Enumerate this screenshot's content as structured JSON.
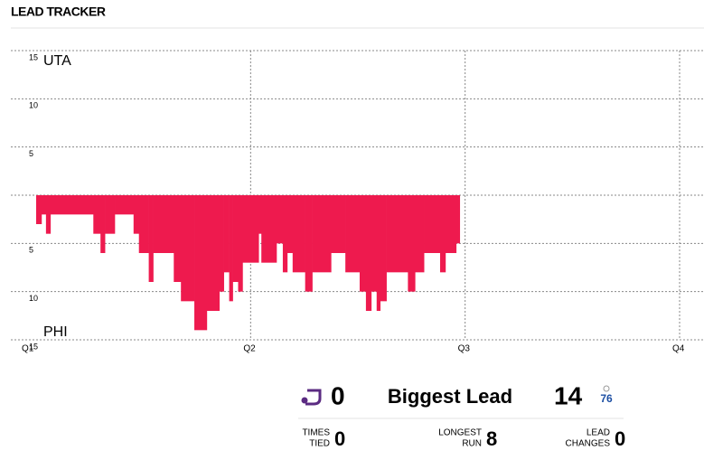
{
  "header": {
    "title": "LEAD TRACKER"
  },
  "chart_data": {
    "type": "step-area",
    "x": [
      0,
      0.3,
      0.55,
      0.8,
      3.2,
      3.6,
      3.85,
      4.4,
      5.45,
      5.75,
      6.3,
      6.55,
      7.7,
      8.1,
      8.85,
      9.55,
      10.25,
      10.5,
      10.8,
      11.0,
      11.3,
      11.55,
      12.45,
      12.6,
      13.45,
      13.8,
      14.05,
      14.35,
      15.05,
      15.45,
      16.5,
      17.3,
      18.1,
      18.45,
      18.75,
      19.05,
      19.25,
      19.6,
      20.8,
      21.2,
      21.7,
      22.6,
      22.9,
      23.5,
      23.7
    ],
    "values": [
      -3,
      -2,
      -4,
      -2,
      -4,
      -6,
      -4,
      -2,
      -4,
      -6,
      -9,
      -6,
      -9,
      -11,
      -14,
      -12,
      -10,
      -8,
      -11,
      -9,
      -10,
      -7,
      -4,
      -7,
      -5,
      -8,
      -6,
      -8,
      -10,
      -8,
      -6,
      -8,
      -10,
      -12,
      -10,
      -12,
      -11,
      -8,
      -10,
      -8,
      -6,
      -8,
      -6,
      -5,
      -5
    ],
    "color": "#ee1a4e",
    "xlim": [
      0,
      36
    ],
    "xticks": [
      {
        "value": 0,
        "label": "Q1"
      },
      {
        "value": 12,
        "label": "Q2"
      },
      {
        "value": 24,
        "label": "Q3"
      },
      {
        "value": 36,
        "label": "Q4"
      }
    ],
    "ylim": [
      -15,
      15
    ],
    "yticks": [
      {
        "value": -15,
        "label": "15"
      },
      {
        "value": -10,
        "label": "10"
      },
      {
        "value": -5,
        "label": "5"
      },
      {
        "value": 0,
        "label": null
      },
      5,
      10,
      15
    ],
    "top_team": "UTA",
    "bottom_team": "PHI",
    "grid": true
  },
  "stats": {
    "left_value": "0",
    "center_label": "Biggest Lead",
    "right_value": "14",
    "items": [
      {
        "label": [
          "TIMES",
          "TIED"
        ],
        "value": "0"
      },
      {
        "label": [
          "LONGEST",
          "RUN"
        ],
        "value": "8"
      },
      {
        "label": [
          "LEAD",
          "CHANGES"
        ],
        "value": "0"
      }
    ]
  }
}
